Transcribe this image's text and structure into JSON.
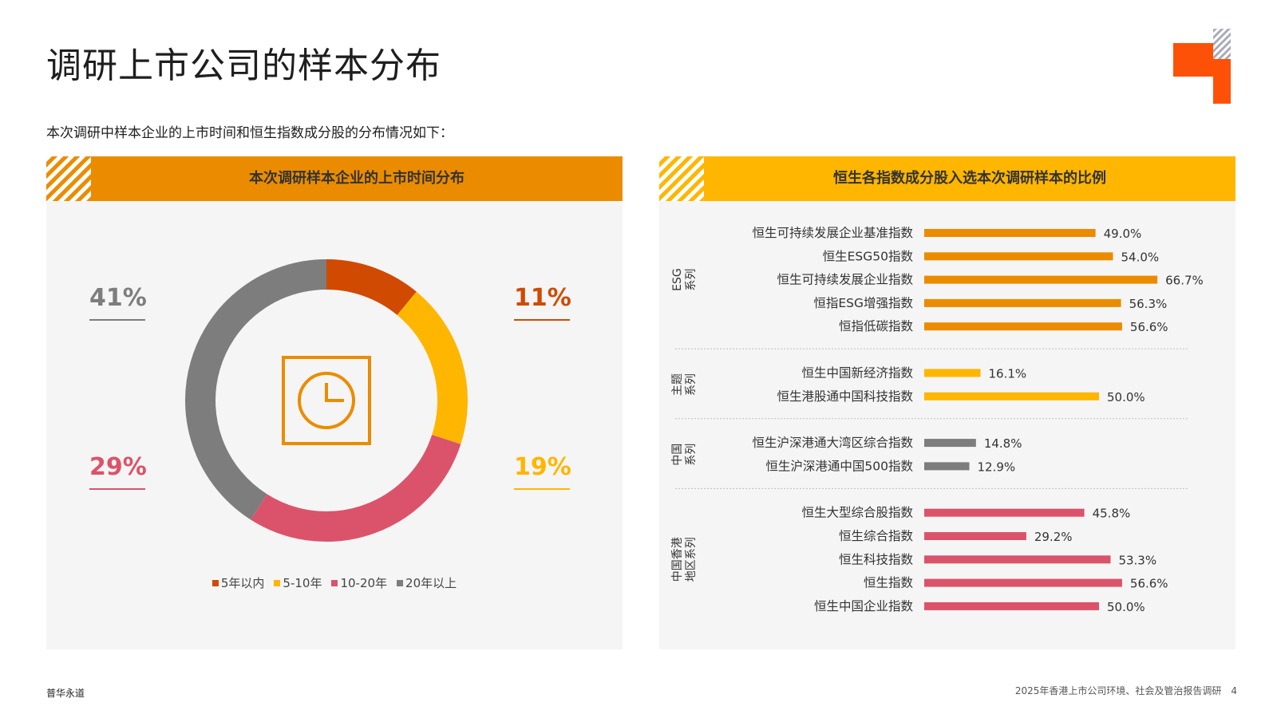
{
  "page": {
    "title": "调研上市公司的样本分布",
    "subtitle": "本次调研中样本企业的上市时间和恒生指数成分股的分布情况如下：",
    "footer_left": "普华永道",
    "footer_right": "2025年香港上市公司环境、社会及管治报告调研",
    "page_number": "4"
  },
  "colors": {
    "orange": "#eb8c00",
    "yellow": "#ffb600",
    "dark_orange": "#d04a02",
    "rose": "#db536a",
    "grey": "#7d7d7d",
    "logo_orange": "#fd5108"
  },
  "chart_data": [
    {
      "type": "pie",
      "title": "本次调研样本企业的上市时间分布",
      "center_icon": "clock-icon",
      "slices": [
        {
          "label": "5年以内",
          "value": 11,
          "display": "11%",
          "color": "#d04a02"
        },
        {
          "label": "5-10年",
          "value": 19,
          "display": "19%",
          "color": "#ffb600"
        },
        {
          "label": "10-20年",
          "value": 29,
          "display": "29%",
          "color": "#db536a"
        },
        {
          "label": "20年以上",
          "value": 41,
          "display": "41%",
          "color": "#7d7d7d"
        }
      ]
    },
    {
      "type": "bar",
      "title": "恒生各指数成分股入选本次调研样本的比例",
      "orientation": "horizontal",
      "xlim": [
        0,
        70
      ],
      "groups": [
        {
          "name": "ESG\n系列",
          "color": "#eb8c00",
          "items": [
            {
              "label": "恒生可持续发展企业基准指数",
              "value": 49.0,
              "display": "49.0%"
            },
            {
              "label": "恒生ESG50指数",
              "value": 54.0,
              "display": "54.0%"
            },
            {
              "label": "恒生可持续发展企业指数",
              "value": 66.7,
              "display": "66.7%"
            },
            {
              "label": "恒指ESG增强指数",
              "value": 56.3,
              "display": "56.3%"
            },
            {
              "label": "恒指低碳指数",
              "value": 56.6,
              "display": "56.6%"
            }
          ]
        },
        {
          "name": "主题\n系列",
          "color": "#ffb600",
          "items": [
            {
              "label": "恒生中国新经济指数",
              "value": 16.1,
              "display": "16.1%"
            },
            {
              "label": "恒生港股通中国科技指数",
              "value": 50.0,
              "display": "50.0%"
            }
          ]
        },
        {
          "name": "中国\n系列",
          "color": "#7d7d7d",
          "items": [
            {
              "label": "恒生沪深港通大湾区综合指数",
              "value": 14.8,
              "display": "14.8%"
            },
            {
              "label": "恒生沪深港通中国500指数",
              "value": 12.9,
              "display": "12.9%"
            }
          ]
        },
        {
          "name": "中国香港\n地区系列",
          "color": "#db536a",
          "items": [
            {
              "label": "恒生大型综合股指数",
              "value": 45.8,
              "display": "45.8%"
            },
            {
              "label": "恒生综合指数",
              "value": 29.2,
              "display": "29.2%"
            },
            {
              "label": "恒生科技指数",
              "value": 53.3,
              "display": "53.3%"
            },
            {
              "label": "恒生指数",
              "value": 56.6,
              "display": "56.6%"
            },
            {
              "label": "恒生中国企业指数",
              "value": 50.0,
              "display": "50.0%"
            }
          ]
        }
      ]
    }
  ]
}
